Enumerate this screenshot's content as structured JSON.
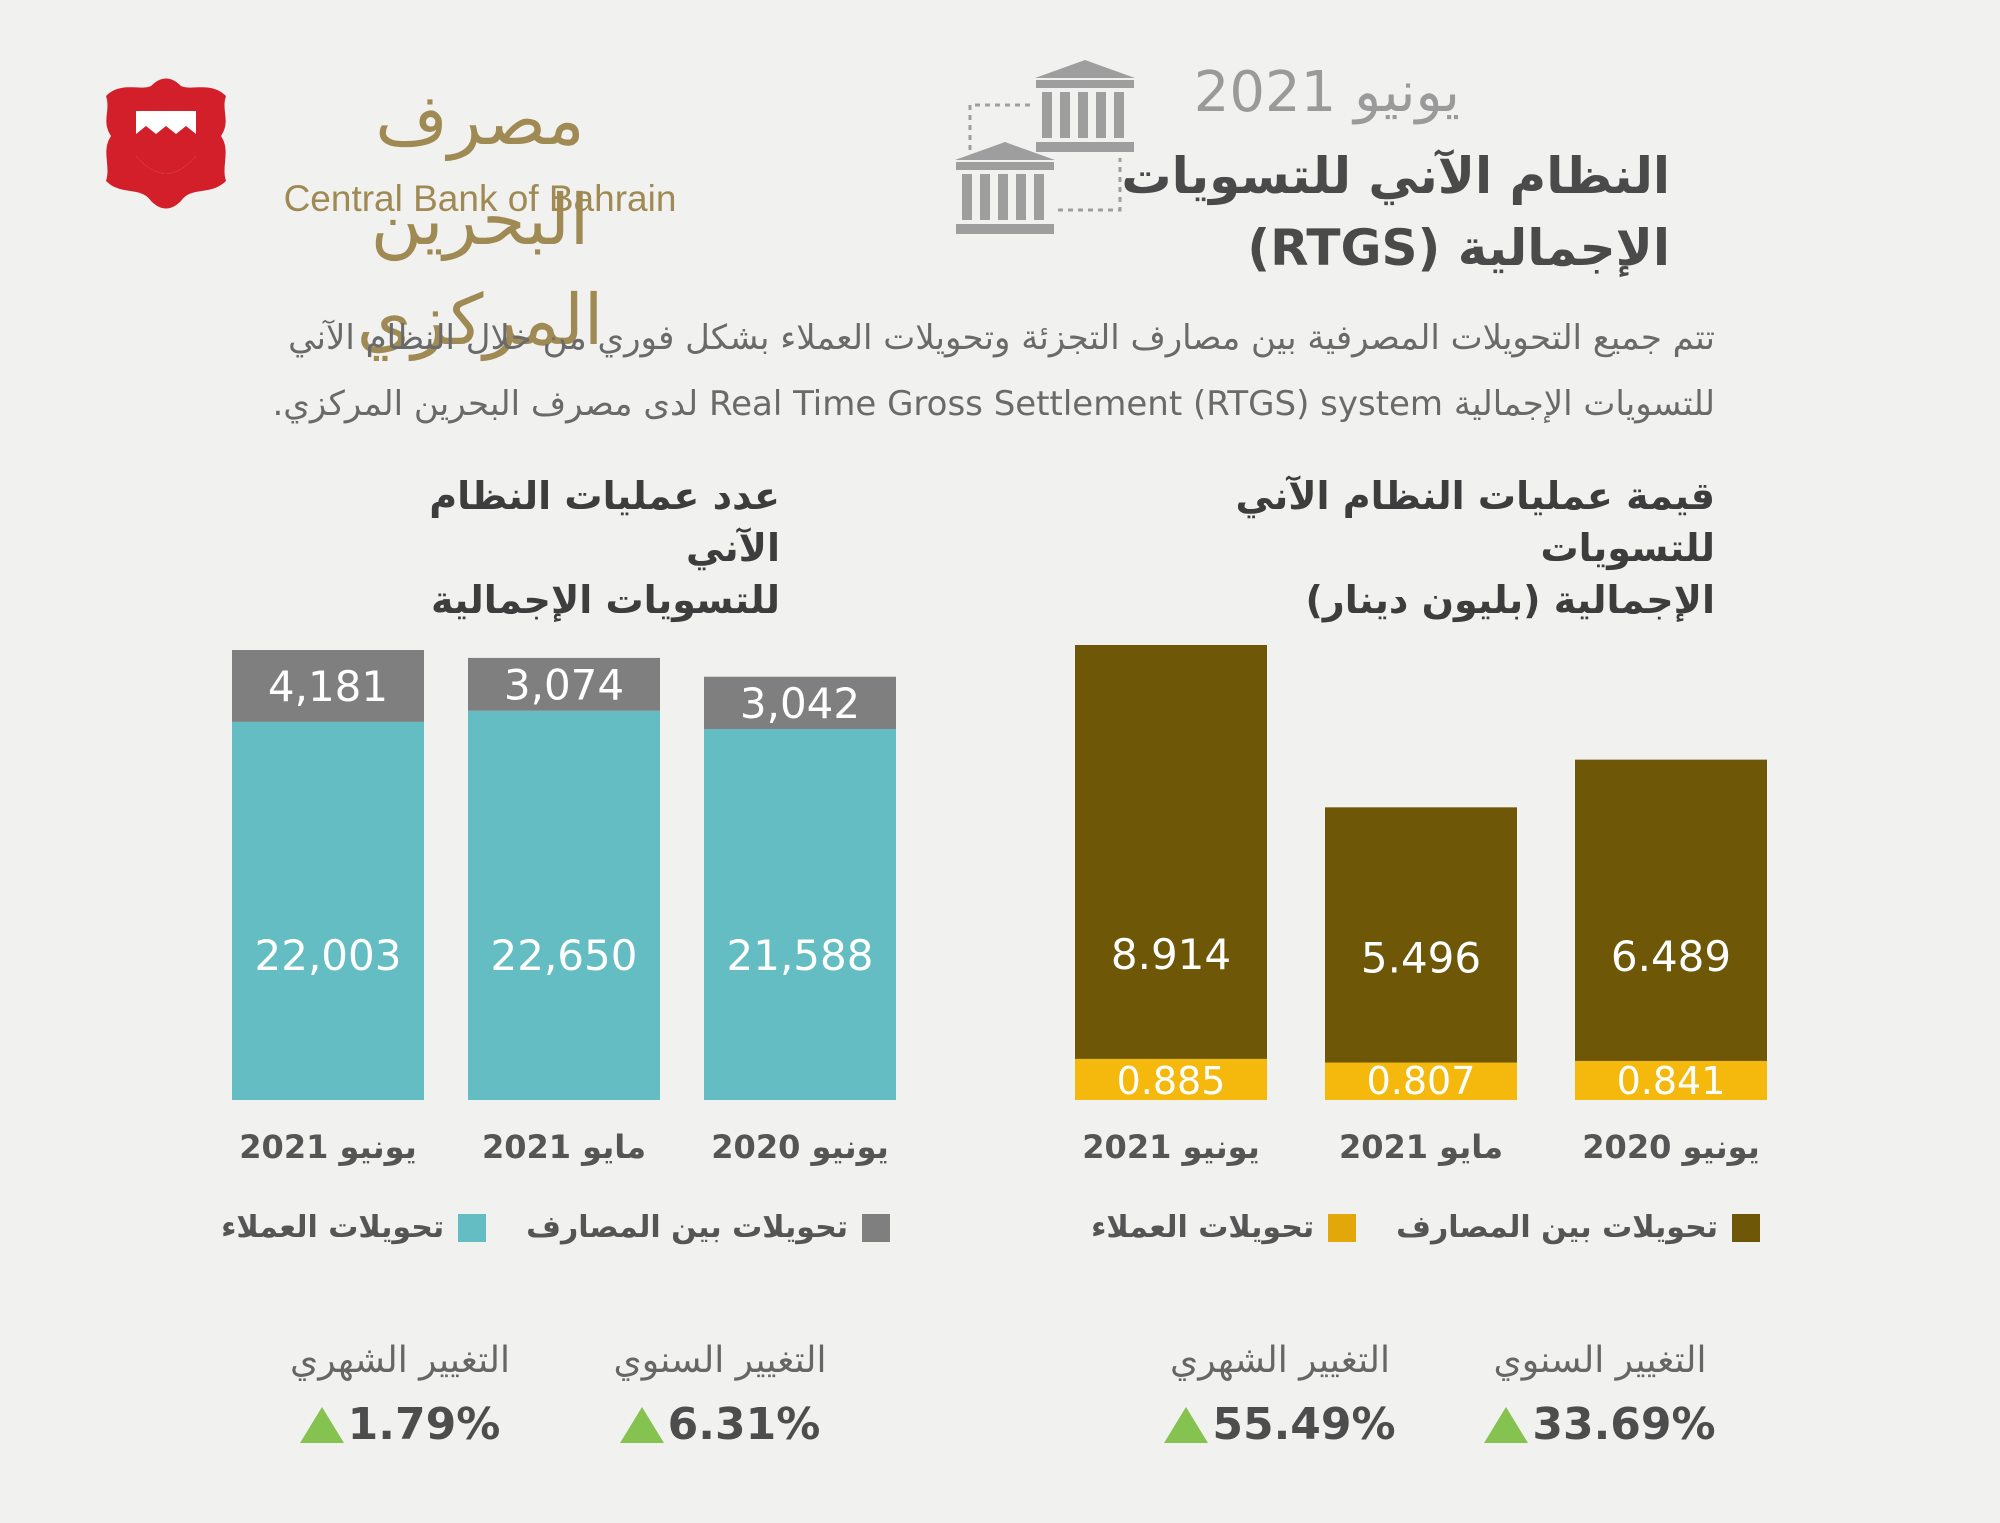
{
  "header": {
    "date": "يونيو 2021",
    "title_line1": "النظام الآني للتسويات",
    "title_line2": "الإجمالية (RTGS)"
  },
  "logo": {
    "name_ar": "مصرف البحرين المركزي",
    "name_en": "Central Bank of Bahrain"
  },
  "intro": {
    "line1": "تتم جميع التحويلات المصرفية بين مصارف التجزئة وتحويلات العملاء بشكل فوري من خلال النظام الآني",
    "line2": "للتسويات الإجمالية Real Time Gross Settlement (RTGS) system لدى مصرف البحرين المركزي."
  },
  "colors": {
    "interbank_value": "#6e5706",
    "customer_value": "#f5b80c",
    "interbank_count": "#7f7f7f",
    "customer_count": "#64bdc2",
    "up_arrow": "#86c24f"
  },
  "chart_data": [
    {
      "type": "bar",
      "stacked": true,
      "title_line1": "قيمة عمليات النظام الآني للتسويات",
      "title_line2": "الإجمالية (بليون دينار)",
      "categories": [
        "يونيو 2021",
        "مايو 2021",
        "يونيو 2020"
      ],
      "series": [
        {
          "name": "تحويلات بين المصارف",
          "values": [
            8.914,
            5.496,
            6.489
          ],
          "labels": [
            "8.914",
            "5.496",
            "6.489"
          ]
        },
        {
          "name": "تحويلات العملاء",
          "values": [
            0.885,
            0.807,
            0.841
          ],
          "labels": [
            "0.885",
            "0.807",
            "0.841"
          ]
        }
      ],
      "legend_icon": "square-swatch",
      "changes": [
        {
          "label": "التغيير الشهري",
          "value": "55.49%",
          "icon": "up-triangle-icon"
        },
        {
          "label": "التغيير السنوي",
          "value": "33.69%",
          "icon": "up-triangle-icon"
        }
      ]
    },
    {
      "type": "bar",
      "stacked": true,
      "title_line1": "عدد عمليات النظام الآني",
      "title_line2": "للتسويات الإجمالية",
      "categories": [
        "يونيو 2021",
        "مايو 2021",
        "يونيو 2020"
      ],
      "series": [
        {
          "name": "تحويلات بين المصارف",
          "values": [
            4181,
            3074,
            3042
          ],
          "labels": [
            "4,181",
            "3,074",
            "3,042"
          ]
        },
        {
          "name": "تحويلات العملاء",
          "values": [
            22003,
            22650,
            21588
          ],
          "labels": [
            "22,003",
            "22,650",
            "21,588"
          ]
        }
      ],
      "changes": [
        {
          "label": "التغيير الشهري",
          "value": "1.79%",
          "icon": "up-triangle-icon"
        },
        {
          "label": "التغيير السنوي",
          "value": "6.31%",
          "icon": "up-triangle-icon"
        }
      ]
    }
  ]
}
